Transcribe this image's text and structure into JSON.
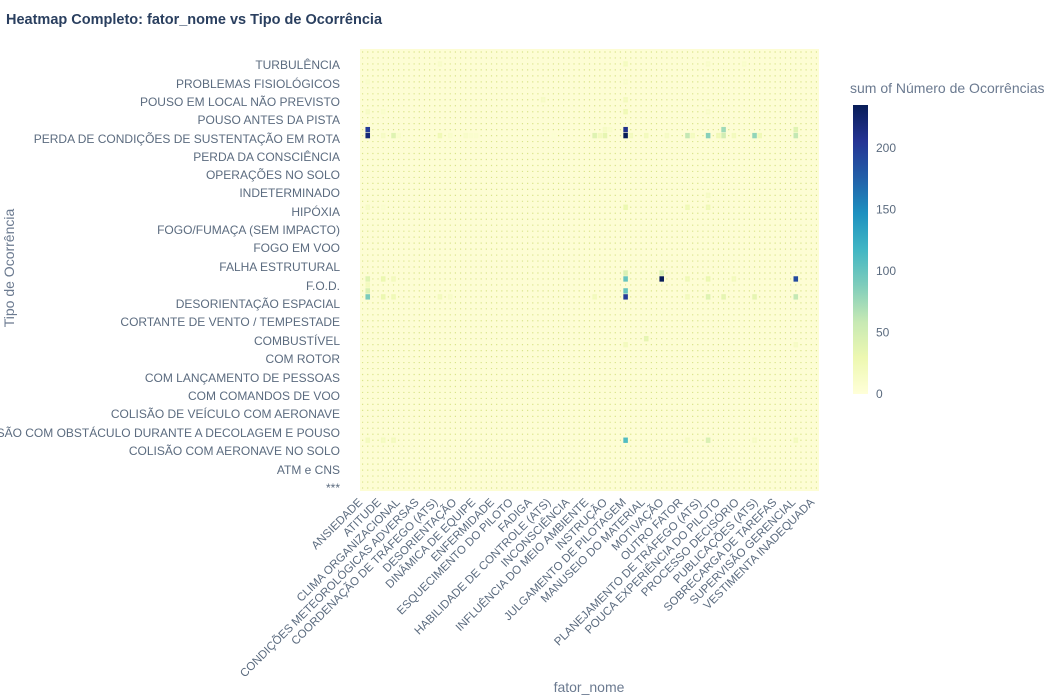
{
  "chart_data": {
    "type": "heatmap",
    "title": "Heatmap Completo: fator_nome vs Tipo de Ocorrência",
    "xlabel": "fator_nome",
    "ylabel": "Tipo de Ocorrência",
    "colorbar_title": "sum of Número de Ocorrências",
    "colorbar_ticks": [
      0,
      50,
      100,
      150,
      200
    ],
    "zrange": [
      0,
      235
    ],
    "colorscale": [
      "#ffffd9",
      "#edf8b1",
      "#c7e9b4",
      "#7fcdbb",
      "#41b6c4",
      "#1d91c0",
      "#225ea8",
      "#253494",
      "#081d58"
    ],
    "x_labels": [
      "ANSIEDADE",
      "ATITUDE",
      "CLIMA ORGANIZACIONAL",
      "CONDIÇÕES METEOROLÓGICAS ADVERSAS",
      "COORDENAÇÃO DE TRÁFEGO (ATS)",
      "DESORIENTAÇÃO",
      "DINÂMICA DE EQUIPE",
      "ENFERMIDADE",
      "ESQUECIMENTO DO PILOTO",
      "FADIGA",
      "HABILIDADE DE CONTROLE (ATS)",
      "INCONSCIÊNCIA",
      "INFLUÊNCIA DO MEIO AMBIENTE",
      "INSTRUÇÃO",
      "JULGAMENTO DE PILOTAGEM",
      "MANUSEIO DO MATERIAL",
      "MOTIVAÇÃO",
      "OUTRO FATOR",
      "PLANEJAMENTO DE TRÁFEGO (ATS)",
      "POUCA EXPERIÊNCIA DO PILOTO",
      "PROCESSO DECISÓRIO",
      "PUBLICAÇÕES (ATS)",
      "SOBRECARGA DE TAREFAS",
      "SUPERVISÃO GERENCIAL",
      "VESTIMENTA INADEQUADA"
    ],
    "y_labels": [
      "TURBULÊNCIA",
      "PROBLEMAS FISIOLÓGICOS",
      "POUSO EM LOCAL NÃO PREVISTO",
      "POUSO ANTES DA PISTA",
      "PERDA DE CONDIÇÕES DE SUSTENTAÇÃO EM ROTA",
      "PERDA DA CONSCIÊNCIA",
      "OPERAÇÕES NO SOLO",
      "INDETERMINADO",
      "HIPÓXIA",
      "FOGO/FUMAÇA (SEM IMPACTO)",
      "FOGO EM VOO",
      "FALHA ESTRUTURAL",
      "F.O.D.",
      "DESORIENTAÇÃO ESPACIAL",
      "CORTANTE DE VENTO / TEMPESTADE",
      "COMBUSTÍVEL",
      "COM ROTOR",
      "COM LANÇAMENTO DE PESSOAS",
      "COM COMANDOS DE VOO",
      "COLISÃO DE VEÍCULO COM AERONAVE",
      "COLISÃO COM OBSTÁCULO DURANTE A DECOLAGEM E POUSO",
      "COLISÃO COM AERONAVE NO SOLO",
      "ATM e CNS",
      "***"
    ],
    "n_x": 74,
    "n_y": 70,
    "x_label_cols": [
      0,
      3,
      6,
      9,
      12,
      15,
      18,
      21,
      24,
      27,
      30,
      33,
      36,
      39,
      42,
      45,
      48,
      51,
      54,
      57,
      60,
      63,
      66,
      69,
      72
    ],
    "y_label_rows": [
      2,
      5,
      8,
      11,
      14,
      17,
      20,
      23,
      26,
      29,
      32,
      35,
      38,
      41,
      44,
      47,
      50,
      53,
      56,
      59,
      62,
      65,
      68,
      71
    ],
    "hot_cells": [
      [
        1,
        14,
        220
      ],
      [
        1,
        13,
        200
      ],
      [
        4,
        14,
        15
      ],
      [
        6,
        14,
        40
      ],
      [
        7,
        14,
        10
      ],
      [
        15,
        14,
        25
      ],
      [
        17,
        14,
        10
      ],
      [
        20,
        14,
        12
      ],
      [
        21,
        14,
        8
      ],
      [
        22,
        14,
        8
      ],
      [
        37,
        14,
        6
      ],
      [
        45,
        14,
        40
      ],
      [
        46,
        14,
        20
      ],
      [
        47,
        13,
        15
      ],
      [
        47,
        14,
        35
      ],
      [
        48,
        13,
        10
      ],
      [
        51,
        14,
        235
      ],
      [
        51,
        13,
        210
      ],
      [
        52,
        14,
        20
      ],
      [
        55,
        14,
        20
      ],
      [
        59,
        14,
        15
      ],
      [
        63,
        14,
        60
      ],
      [
        64,
        14,
        18
      ],
      [
        67,
        14,
        85
      ],
      [
        69,
        14,
        25
      ],
      [
        70,
        13,
        75
      ],
      [
        70,
        14,
        50
      ],
      [
        72,
        14,
        20
      ],
      [
        76,
        14,
        80
      ],
      [
        77,
        14,
        25
      ],
      [
        84,
        13,
        40
      ],
      [
        84,
        14,
        60
      ],
      [
        1,
        38,
        40
      ],
      [
        1,
        39,
        20
      ],
      [
        4,
        38,
        30
      ],
      [
        6,
        38,
        20
      ],
      [
        1,
        41,
        90
      ],
      [
        1,
        40,
        45
      ],
      [
        4,
        41,
        30
      ],
      [
        6,
        41,
        25
      ],
      [
        15,
        41,
        20
      ],
      [
        17,
        41,
        12
      ],
      [
        45,
        41,
        20
      ],
      [
        51,
        38,
        100
      ],
      [
        51,
        37,
        45
      ],
      [
        51,
        41,
        200
      ],
      [
        51,
        40,
        100
      ],
      [
        58,
        38,
        235
      ],
      [
        58,
        37,
        45
      ],
      [
        63,
        38,
        25
      ],
      [
        63,
        41,
        20
      ],
      [
        67,
        38,
        30
      ],
      [
        67,
        41,
        40
      ],
      [
        70,
        41,
        35
      ],
      [
        72,
        38,
        20
      ],
      [
        76,
        41,
        35
      ],
      [
        84,
        38,
        190
      ],
      [
        84,
        41,
        60
      ],
      [
        1,
        65,
        20
      ],
      [
        4,
        65,
        18
      ],
      [
        6,
        65,
        20
      ],
      [
        51,
        65,
        110
      ],
      [
        63,
        65,
        15
      ],
      [
        67,
        65,
        45
      ],
      [
        76,
        65,
        15
      ],
      [
        84,
        65,
        20
      ],
      [
        1,
        26,
        15
      ],
      [
        4,
        26,
        8
      ],
      [
        51,
        26,
        30
      ],
      [
        63,
        26,
        25
      ],
      [
        67,
        26,
        25
      ],
      [
        67,
        24,
        15
      ],
      [
        1,
        10,
        15
      ],
      [
        4,
        10,
        10
      ],
      [
        51,
        10,
        25
      ],
      [
        51,
        8,
        20
      ],
      [
        67,
        10,
        12
      ],
      [
        55,
        48,
        35
      ],
      [
        51,
        49,
        20
      ],
      [
        15,
        2,
        12
      ],
      [
        51,
        2,
        18
      ],
      [
        67,
        2,
        12
      ],
      [
        74,
        2,
        10
      ],
      [
        1,
        5,
        10
      ],
      [
        51,
        5,
        10
      ],
      [
        35,
        8,
        15
      ],
      [
        84,
        49,
        15
      ]
    ]
  }
}
